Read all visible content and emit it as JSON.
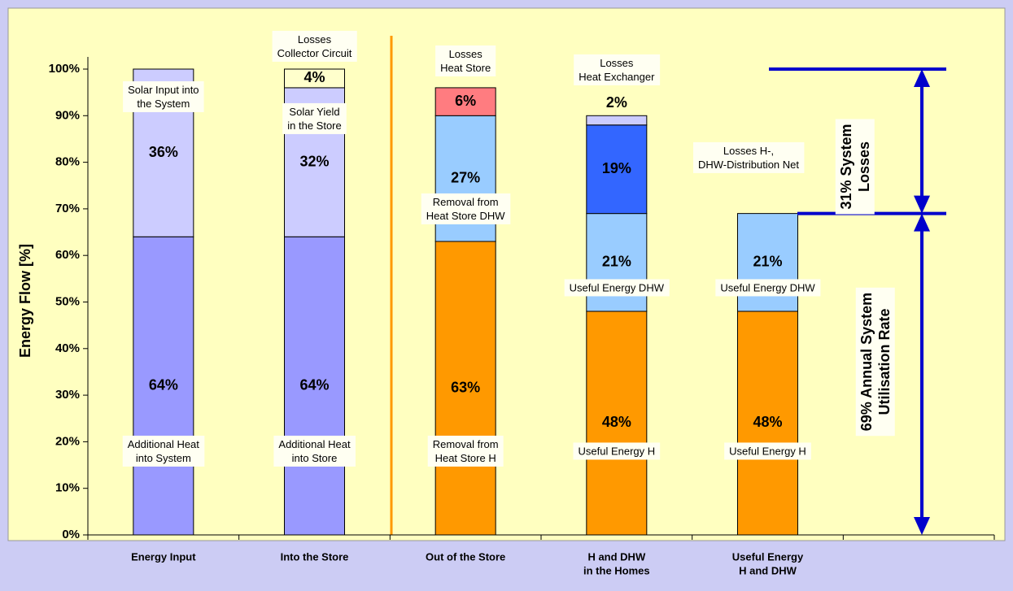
{
  "chart_data": {
    "type": "stacked-bar",
    "y_label": "Energy Flow [%]",
    "categories": [
      [
        "Energy Input"
      ],
      [
        "Into the Store"
      ],
      [
        "Out of the Store"
      ],
      [
        "H and DHW",
        "in the Homes"
      ],
      [
        "Useful Energy",
        "H and DHW"
      ],
      null
    ],
    "bars": [
      {
        "segments": [
          {
            "name": [
              "Additional Heat",
              "into System"
            ],
            "value": 64,
            "value_label": "64%",
            "color": "#9999ff"
          },
          {
            "name": [
              "Solar Input into",
              "the System"
            ],
            "value": 36,
            "value_label": "36%",
            "color": "#ccccff"
          }
        ]
      },
      {
        "segments": [
          {
            "name": [
              "Additional Heat",
              "into Store"
            ],
            "value": 64,
            "value_label": "64%",
            "color": "#9999ff"
          },
          {
            "name": [
              "Solar Yield",
              "in the Store"
            ],
            "value": 32,
            "value_label": "32%",
            "color": "#ccccff"
          },
          {
            "name": [
              "Losses",
              "Collector Circuit"
            ],
            "value": 4,
            "value_label": "4%",
            "color": "#ffffcc"
          }
        ]
      },
      {
        "segments": [
          {
            "name": [
              "Removal from",
              "Heat Store H"
            ],
            "value": 63,
            "value_label": "63%",
            "color": "#ff9900"
          },
          {
            "name": [
              "Removal from",
              "Heat Store DHW"
            ],
            "value": 27,
            "value_label": "27%",
            "color": "#99ccff"
          },
          {
            "name": [
              "Losses",
              "Heat Store"
            ],
            "value": 6,
            "value_label": "6%",
            "color": "#ff7c80"
          }
        ]
      },
      {
        "segments": [
          {
            "name": [
              "Useful Energy H"
            ],
            "value": 48,
            "value_label": "48%",
            "color": "#ff9900"
          },
          {
            "name": [
              "Useful Energy DHW"
            ],
            "value": 21,
            "value_label": "21%",
            "color": "#99ccff"
          },
          {
            "name": [
              "Losses H-,",
              "DHW-Distribution Net"
            ],
            "value": 19,
            "value_label": "19%",
            "color": "#3366ff"
          },
          {
            "name": [
              "Losses",
              "Heat Exchanger"
            ],
            "value": 2,
            "value_label": "2%",
            "color": "#ccccff"
          }
        ]
      },
      {
        "segments": [
          {
            "name": [
              "Useful Energy H"
            ],
            "value": 48,
            "value_label": "48%",
            "color": "#ff9900"
          },
          {
            "name": [
              "Useful Energy DHW"
            ],
            "value": 21,
            "value_label": "21%",
            "color": "#99ccff"
          }
        ]
      },
      null
    ],
    "ylim": [
      0,
      100
    ],
    "yticks": [
      {
        "value": 0,
        "label": "0%"
      },
      {
        "value": 10,
        "label": "10%"
      },
      {
        "value": 20,
        "label": "20%"
      },
      {
        "value": 30,
        "label": "30%"
      },
      {
        "value": 40,
        "label": "40%"
      },
      {
        "value": 50,
        "label": "50%"
      },
      {
        "value": 60,
        "label": "60%"
      },
      {
        "value": 70,
        "label": "70%"
      },
      {
        "value": 80,
        "label": "80%"
      },
      {
        "value": 90,
        "label": "90%"
      },
      {
        "value": 100,
        "label": "100%"
      }
    ],
    "reference_lines": [
      100,
      69
    ],
    "annotations": [
      [
        "31% System",
        "Losses"
      ],
      [
        "69% Annual System",
        "Utilisation Rate"
      ]
    ]
  }
}
